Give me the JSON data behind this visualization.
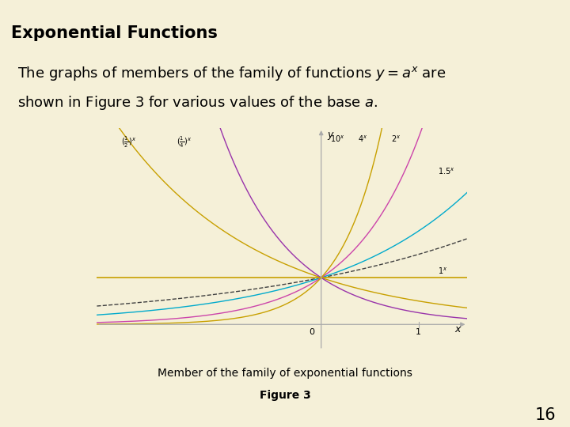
{
  "title": "Exponential Functions",
  "caption1": "Member of the family of exponential functions",
  "caption2": "Figure 3",
  "page_number": "16",
  "bg_color": "#f5f0d8",
  "header_accent": "#29b8d8",
  "header_line_color": "#c8b870",
  "curves": [
    {
      "base": 0.5,
      "color": "#c8a000",
      "lw": 1.0,
      "ls": "-"
    },
    {
      "base": 0.25,
      "color": "#9933aa",
      "lw": 1.0,
      "ls": "-"
    },
    {
      "base": 1.5,
      "color": "#404040",
      "lw": 1.0,
      "ls": "--"
    },
    {
      "base": 2.0,
      "color": "#00aacc",
      "lw": 1.0,
      "ls": "-"
    },
    {
      "base": 4.0,
      "color": "#cc44aa",
      "lw": 1.0,
      "ls": "-"
    },
    {
      "base": 10.0,
      "color": "#c8a000",
      "lw": 1.0,
      "ls": "-"
    },
    {
      "base": 1.0,
      "color": "#c8a000",
      "lw": 1.2,
      "ls": "-"
    }
  ],
  "xmin": -2.3,
  "xmax": 1.5,
  "ymin": -0.55,
  "ymax": 4.2,
  "axis_color": "#aaaaaa",
  "font_color": "#000000"
}
